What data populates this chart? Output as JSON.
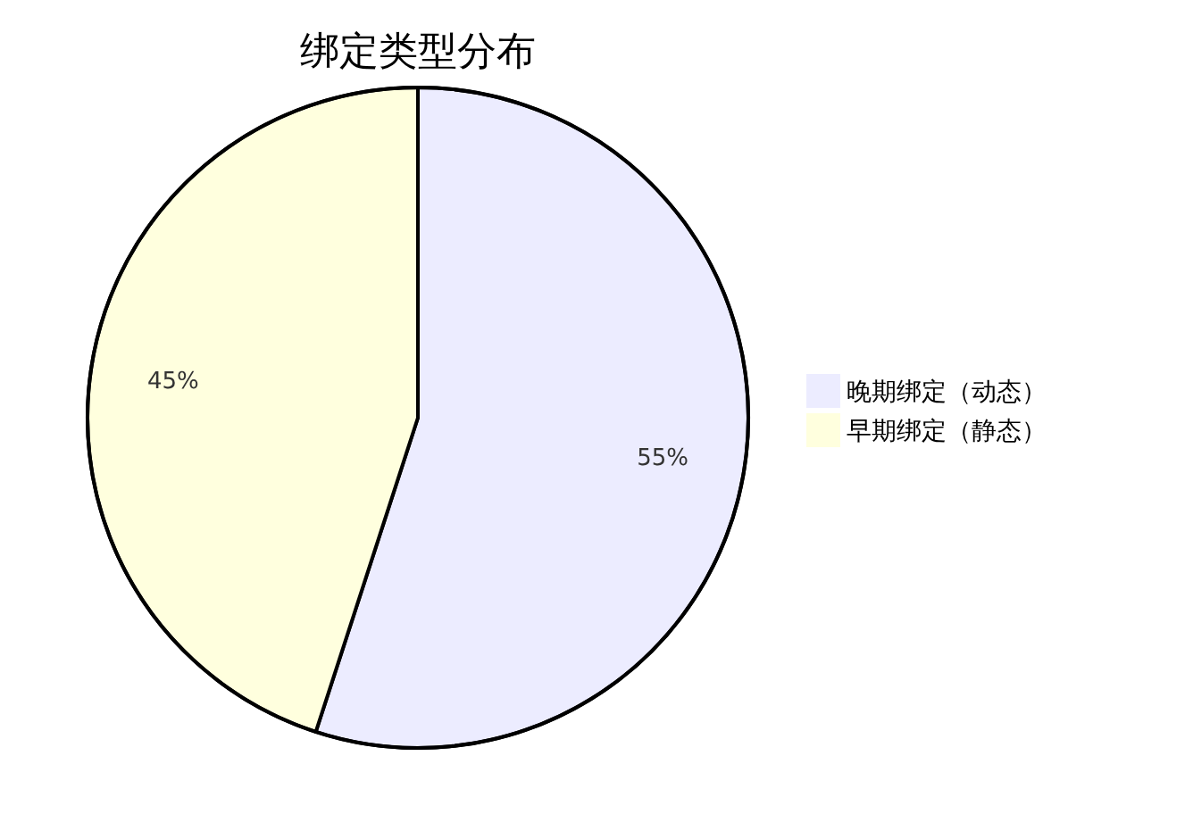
{
  "chart_data": {
    "type": "pie",
    "title": "绑定类型分布",
    "categories": [
      "晚期绑定（动态）",
      "早期绑定（静态）"
    ],
    "values": [
      55,
      45
    ],
    "colors": [
      "#ececff",
      "#ffffde"
    ],
    "value_labels": [
      "55%",
      "45%"
    ],
    "legend": "right"
  }
}
